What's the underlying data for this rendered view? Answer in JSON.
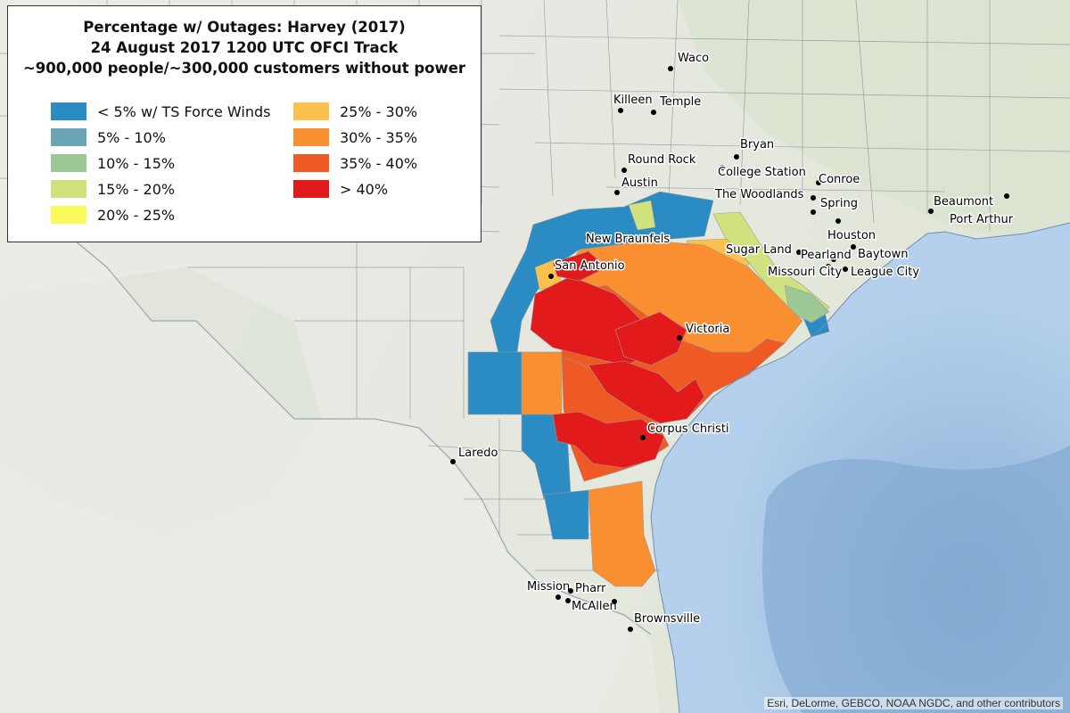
{
  "legend": {
    "title_lines": [
      "Percentage w/ Outages: Harvey (2017)",
      "24 August 2017 1200 UTC OFCI Track",
      "~900,000 people/~300,000 customers without power"
    ],
    "items": [
      {
        "label": "< 5% w/ TS Force Winds",
        "color": "#2b8cc4"
      },
      {
        "label": "5% - 10%",
        "color": "#6aa6b8"
      },
      {
        "label": "10% - 15%",
        "color": "#9cc896"
      },
      {
        "label": "15% - 20%",
        "color": "#cfe27e"
      },
      {
        "label": "20% - 25%",
        "color": "#fafa5a"
      },
      {
        "label": "25% - 30%",
        "color": "#fcc04c"
      },
      {
        "label": "30% - 35%",
        "color": "#f98f30"
      },
      {
        "label": "35% - 40%",
        "color": "#ef5a24"
      },
      {
        "label": "> 40%",
        "color": "#e31a1c"
      }
    ]
  },
  "cities": [
    {
      "name": "Waco"
    },
    {
      "name": "Killeen"
    },
    {
      "name": "Temple"
    },
    {
      "name": "Bryan"
    },
    {
      "name": "Round Rock"
    },
    {
      "name": "College Station"
    },
    {
      "name": "Conroe"
    },
    {
      "name": "Austin"
    },
    {
      "name": "The Woodlands"
    },
    {
      "name": "Spring"
    },
    {
      "name": "Beaumont"
    },
    {
      "name": "Port Arthur"
    },
    {
      "name": "Houston"
    },
    {
      "name": "New Braunfels"
    },
    {
      "name": "Sugar Land"
    },
    {
      "name": "Pearland"
    },
    {
      "name": "Baytown"
    },
    {
      "name": "San Antonio"
    },
    {
      "name": "Missouri City"
    },
    {
      "name": "League City"
    },
    {
      "name": "Victoria"
    },
    {
      "name": "Corpus Christi"
    },
    {
      "name": "Laredo"
    },
    {
      "name": "Mission"
    },
    {
      "name": "Pharr"
    },
    {
      "name": "McAllen"
    },
    {
      "name": "Brownsville"
    }
  ],
  "attribution": "Esri, DeLorme, GEBCO, NOAA NGDC, and other contributors",
  "colors": {
    "land": "#e8e8e4",
    "water": "#a9c8e8",
    "deep_water": "#8fb2d8",
    "county_line": "#8a8a8a"
  }
}
